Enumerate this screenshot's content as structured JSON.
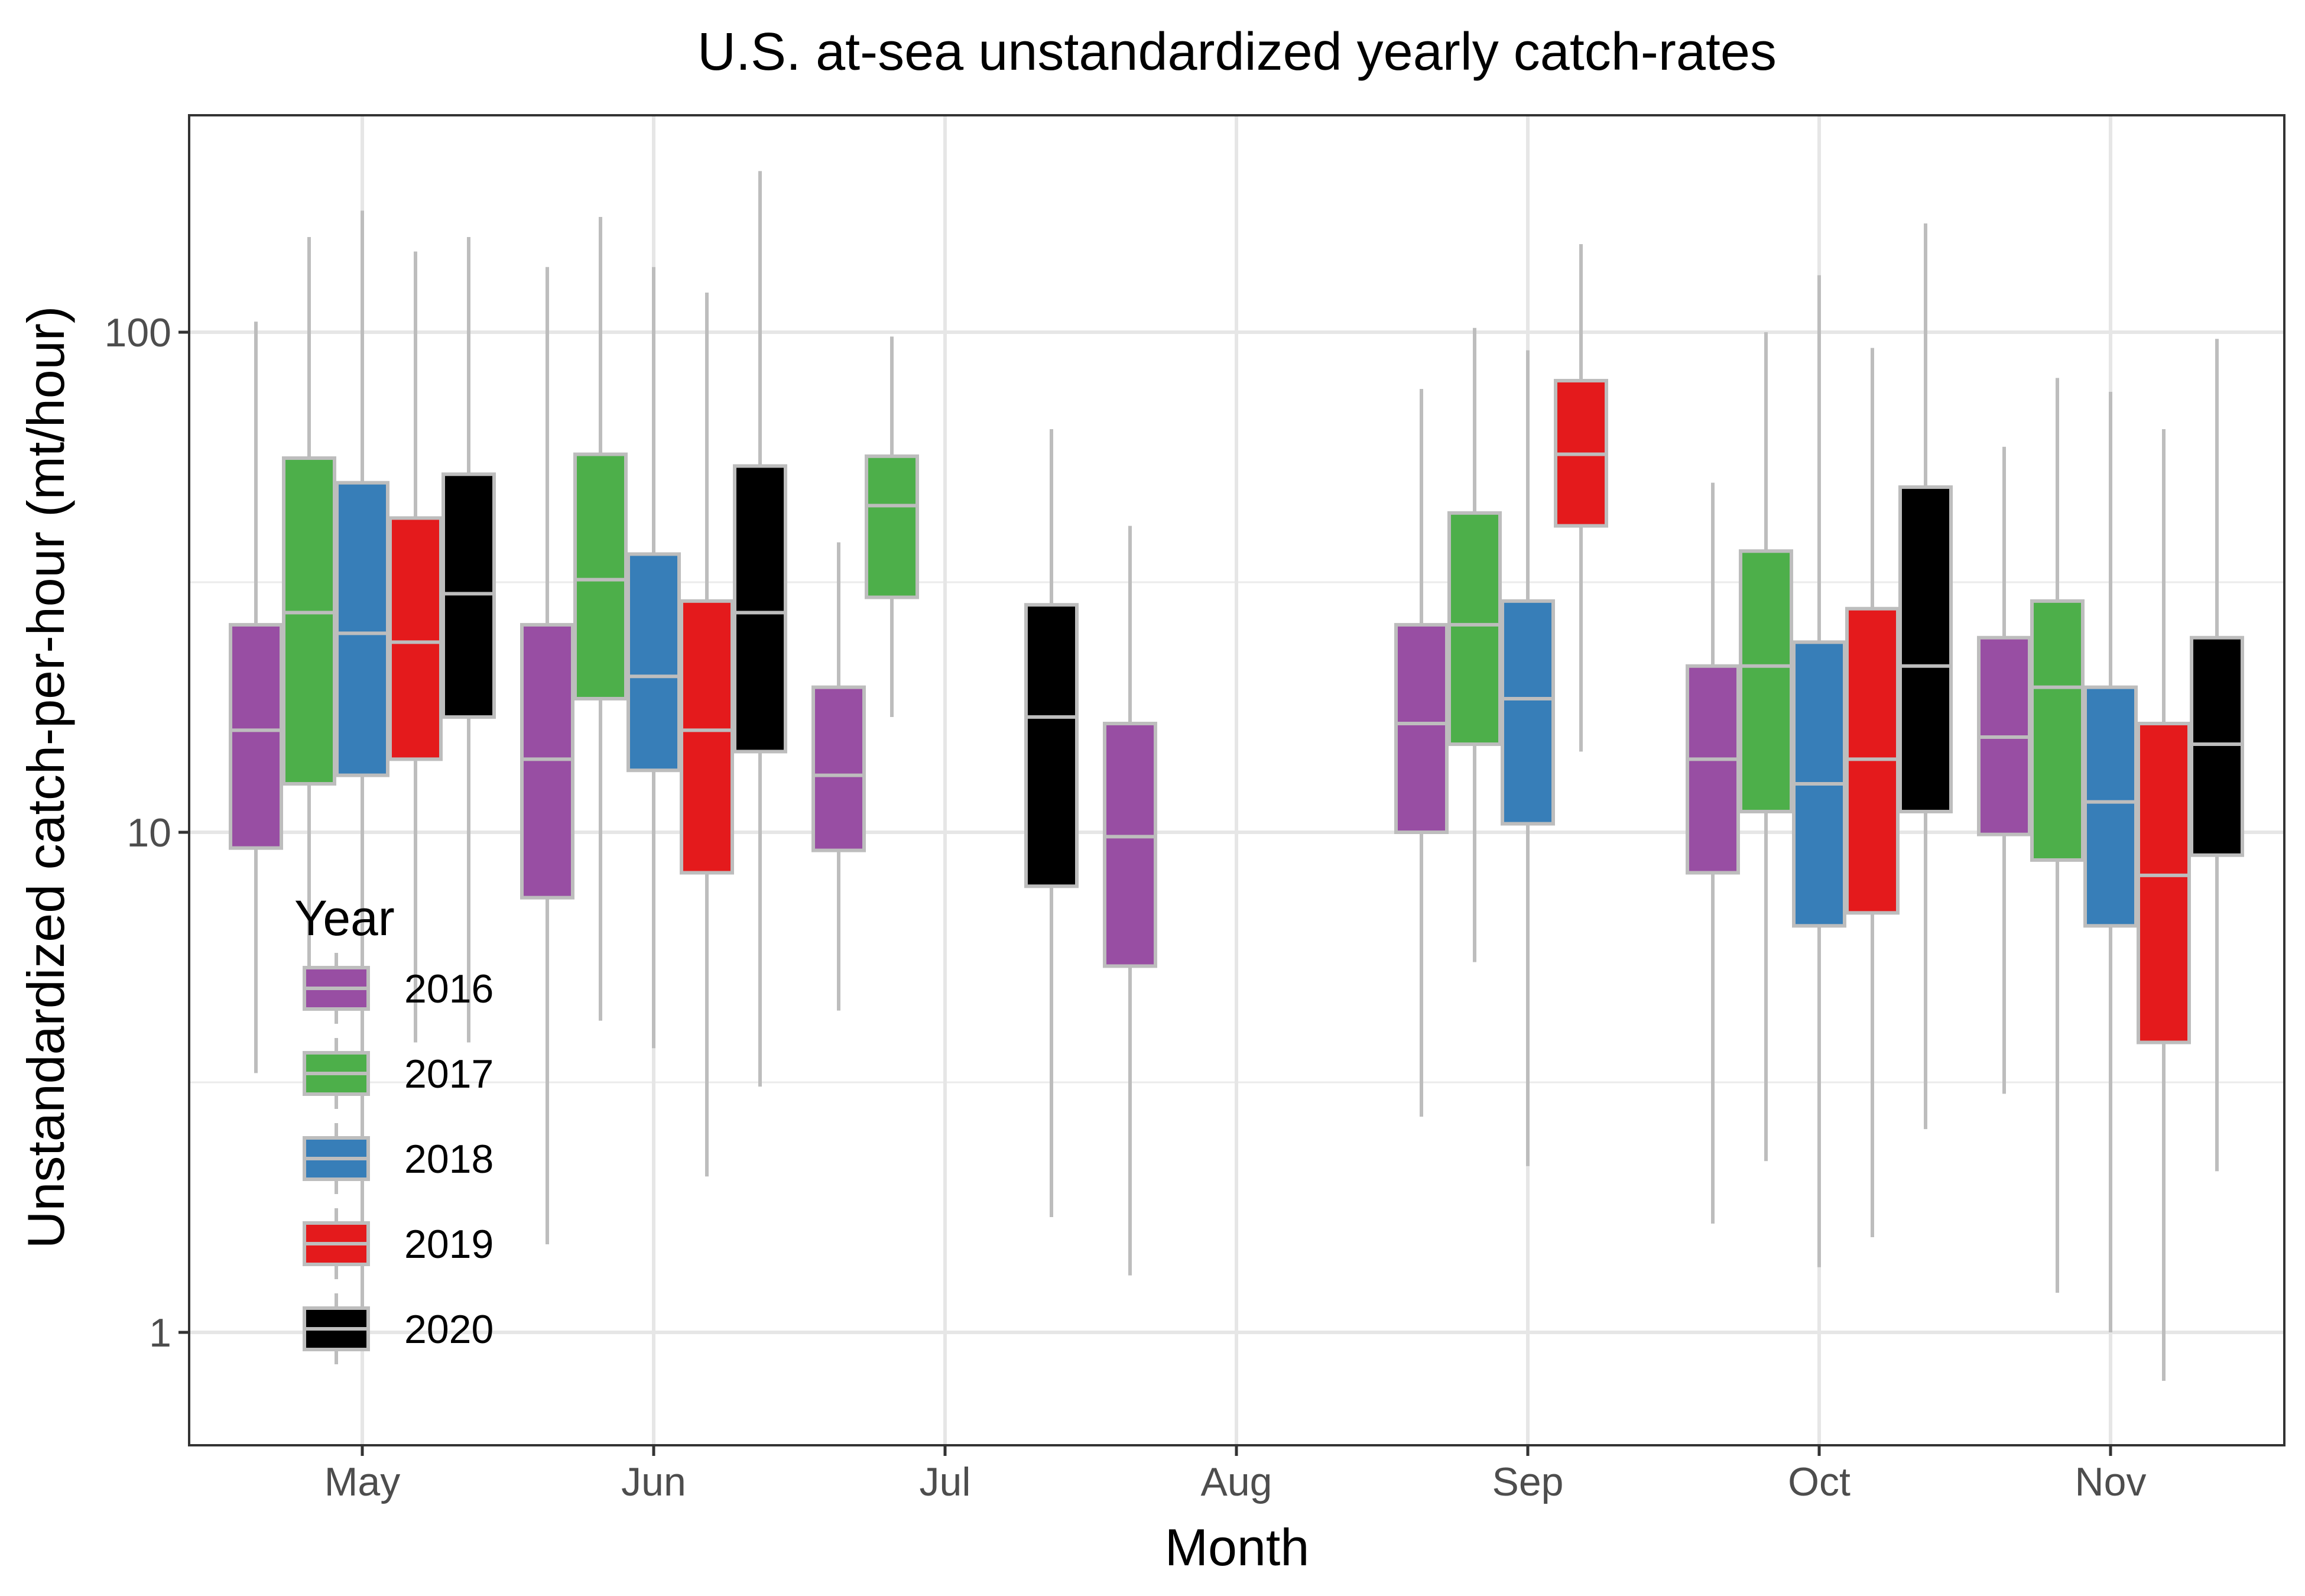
{
  "chart_data": {
    "type": "boxplot",
    "title": "U.S. at-sea unstandardized yearly catch-rates",
    "xlabel": "Month",
    "ylabel": "Unstandardized catch-per-hour (mt/hour)",
    "y_scale": "log10",
    "ylim": [
      0.6,
      250
    ],
    "y_ticks": [
      {
        "value": 1,
        "label": "1"
      },
      {
        "value": 10,
        "label": "10"
      },
      {
        "value": 100,
        "label": "100"
      }
    ],
    "categories": [
      "May",
      "Jun",
      "Jul",
      "Aug",
      "Sep",
      "Oct",
      "Nov"
    ],
    "grid": true,
    "legend": {
      "title": "Year",
      "position": "inside bottom-left"
    },
    "box_style": {
      "outline_color": "#bdbdbd",
      "median_color": "#bdbdbd",
      "whisker_color": "#bdbdbd"
    },
    "series": [
      {
        "name": "2016",
        "color": "#984ea3",
        "boxes": [
          {
            "month": "May",
            "whisker_low": 3.3,
            "q1": 9.3,
            "median": 16.0,
            "q3": 26.0,
            "whisker_high": 105
          },
          {
            "month": "Jun",
            "whisker_low": 1.5,
            "q1": 7.4,
            "median": 14.0,
            "q3": 26.0,
            "whisker_high": 135
          },
          {
            "month": "Jul",
            "whisker_low": 4.4,
            "q1": 9.2,
            "median": 13.0,
            "q3": 19.5,
            "whisker_high": 38
          },
          {
            "month": "Aug",
            "whisker_low": 1.3,
            "q1": 5.4,
            "median": 9.8,
            "q3": 16.5,
            "whisker_high": 41
          },
          {
            "month": "Sep",
            "whisker_low": 2.7,
            "q1": 10.0,
            "median": 16.5,
            "q3": 26.0,
            "whisker_high": 77
          },
          {
            "month": "Oct",
            "whisker_low": 1.65,
            "q1": 8.3,
            "median": 14.0,
            "q3": 21.5,
            "whisker_high": 50
          },
          {
            "month": "Nov",
            "whisker_low": 3.0,
            "q1": 9.9,
            "median": 15.5,
            "q3": 24.5,
            "whisker_high": 59
          }
        ]
      },
      {
        "name": "2017",
        "color": "#4daf4a",
        "boxes": [
          {
            "month": "May",
            "whisker_low": 5.4,
            "q1": 12.5,
            "median": 27.5,
            "q3": 56.0,
            "whisker_high": 155
          },
          {
            "month": "Jun",
            "whisker_low": 4.2,
            "q1": 18.5,
            "median": 32.0,
            "q3": 57.0,
            "whisker_high": 170
          },
          {
            "month": "Jul",
            "whisker_low": 17.0,
            "q1": 29.5,
            "median": 45.0,
            "q3": 56.5,
            "whisker_high": 98
          },
          {
            "month": "Sep",
            "whisker_low": 5.5,
            "q1": 15.0,
            "median": 26.0,
            "q3": 43.5,
            "whisker_high": 102
          },
          {
            "month": "Oct",
            "whisker_low": 2.2,
            "q1": 11.0,
            "median": 21.5,
            "q3": 36.5,
            "whisker_high": 100
          },
          {
            "month": "Nov",
            "whisker_low": 1.2,
            "q1": 8.8,
            "median": 19.5,
            "q3": 29.0,
            "whisker_high": 81
          }
        ]
      },
      {
        "name": "2018",
        "color": "#377eb8",
        "boxes": [
          {
            "month": "May",
            "whisker_low": 1.05,
            "q1": 13.0,
            "median": 25.0,
            "q3": 50.0,
            "whisker_high": 175
          },
          {
            "month": "Jun",
            "whisker_low": 3.7,
            "q1": 13.3,
            "median": 20.5,
            "q3": 36.0,
            "whisker_high": 135
          },
          {
            "month": "Sep",
            "whisker_low": 2.15,
            "q1": 10.4,
            "median": 18.5,
            "q3": 29.0,
            "whisker_high": 92
          },
          {
            "month": "Oct",
            "whisker_low": 1.35,
            "q1": 6.5,
            "median": 12.5,
            "q3": 24.0,
            "whisker_high": 130
          },
          {
            "month": "Nov",
            "whisker_low": 1.0,
            "q1": 6.5,
            "median": 11.5,
            "q3": 19.5,
            "whisker_high": 76
          }
        ]
      },
      {
        "name": "2019",
        "color": "#e41a1c",
        "boxes": [
          {
            "month": "May",
            "whisker_low": 3.8,
            "q1": 14.0,
            "median": 24.0,
            "q3": 42.5,
            "whisker_high": 145
          },
          {
            "month": "Jun",
            "whisker_low": 2.05,
            "q1": 8.3,
            "median": 16.0,
            "q3": 29.0,
            "whisker_high": 120
          },
          {
            "month": "Sep",
            "whisker_low": 14.5,
            "q1": 41.0,
            "median": 57.0,
            "q3": 80.0,
            "whisker_high": 150
          },
          {
            "month": "Oct",
            "whisker_low": 1.55,
            "q1": 6.9,
            "median": 14.0,
            "q3": 28.0,
            "whisker_high": 93
          },
          {
            "month": "Nov",
            "whisker_low": 0.8,
            "q1": 3.8,
            "median": 8.2,
            "q3": 16.5,
            "whisker_high": 64
          }
        ]
      },
      {
        "name": "2020",
        "color": "#000000",
        "boxes": [
          {
            "month": "May",
            "whisker_low": 3.8,
            "q1": 17.0,
            "median": 30.0,
            "q3": 52.0,
            "whisker_high": 155
          },
          {
            "month": "Jun",
            "whisker_low": 3.1,
            "q1": 14.5,
            "median": 27.5,
            "q3": 54.0,
            "whisker_high": 210
          },
          {
            "month": "Jul",
            "whisker_low": 1.7,
            "q1": 7.8,
            "median": 17.0,
            "q3": 28.5,
            "whisker_high": 64
          },
          {
            "month": "Oct",
            "whisker_low": 2.55,
            "q1": 11.0,
            "median": 21.5,
            "q3": 49.0,
            "whisker_high": 165
          },
          {
            "month": "Nov",
            "whisker_low": 2.1,
            "q1": 9.0,
            "median": 15.0,
            "q3": 24.5,
            "whisker_high": 97
          }
        ]
      }
    ]
  }
}
